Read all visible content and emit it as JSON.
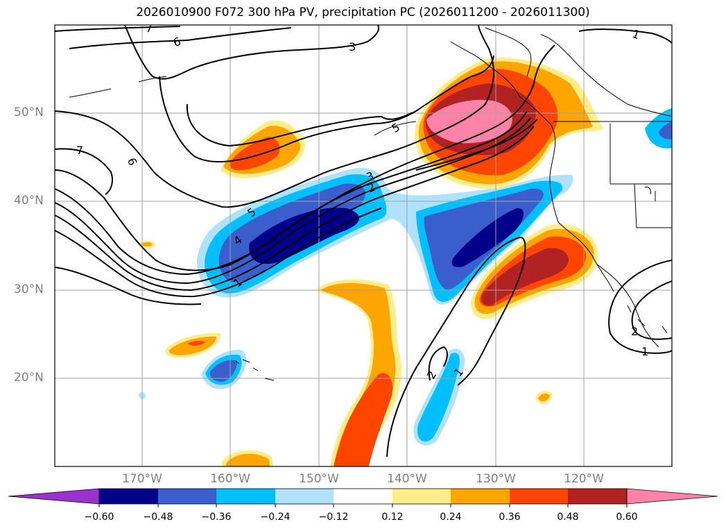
{
  "title": "2026010900 F072 300 hPa PV, precipitation PC (2026011200 - 2026011300)",
  "map": {
    "region": "North Pacific and western North America",
    "lat_range": [
      10,
      60
    ],
    "lon_range": [
      -180,
      -110
    ]
  },
  "lat_labels": [
    "50°N",
    "40°N",
    "30°N",
    "20°N"
  ],
  "lon_labels": [
    "170°W",
    "160°W",
    "150°W",
    "140°W",
    "130°W",
    "120°W"
  ],
  "pv_contour_labels": [
    "7",
    "6",
    "6",
    "7",
    "3",
    "5",
    "4",
    "5",
    "3",
    "2",
    "1",
    "2",
    "1",
    "2",
    "1",
    "1"
  ],
  "colorbar": {
    "tick_labels": [
      "−0.60",
      "−0.48",
      "−0.36",
      "−0.24",
      "−0.12",
      "0.12",
      "0.24",
      "0.36",
      "0.48",
      "0.60"
    ],
    "colors": [
      "#9a32cd",
      "#00008b",
      "#3a5fcd",
      "#00bfff",
      "#b0e2ff",
      "#ffffff",
      "#ffec8b",
      "#ffa500",
      "#ff4500",
      "#b22222",
      "#ff83a8"
    ]
  },
  "fill_colors": {
    "lightblue": "#b0e2ff",
    "cyan": "#00bfff",
    "blue": "#3a5fcd",
    "navy": "#00008b",
    "yellow": "#ffec8b",
    "orange": "#ffa500",
    "redorange": "#ff4500",
    "firebrick": "#b22222",
    "pink": "#ff83a8"
  }
}
